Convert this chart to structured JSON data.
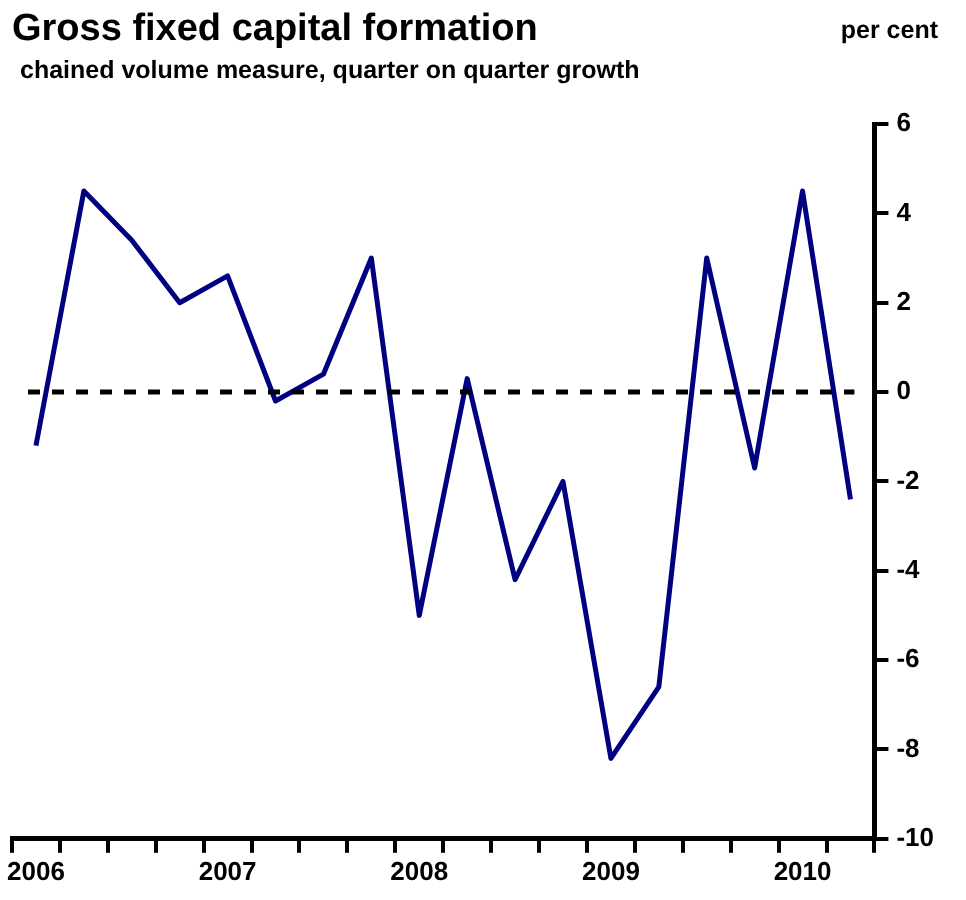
{
  "chart_data": {
    "type": "line",
    "title": "Gross fixed capital formation",
    "subtitle": "chained volume measure, quarter on quarter growth",
    "ylabel": "per cent",
    "categories": [
      "2006",
      null,
      null,
      null,
      "2007",
      null,
      null,
      null,
      "2008",
      null,
      null,
      null,
      "2009",
      null,
      null,
      null,
      "2010",
      null
    ],
    "series": [
      {
        "color": "#000080",
        "values": [
          -1.2,
          4.5,
          3.4,
          2.0,
          2.6,
          -0.2,
          0.4,
          3.0,
          -5.0,
          0.3,
          -4.2,
          -2.0,
          -8.2,
          -6.6,
          3.0,
          -1.7,
          4.5,
          -2.4
        ]
      }
    ],
    "ylim": [
      -10,
      6
    ],
    "yticks": [
      -10,
      -8,
      -6,
      -4,
      -2,
      0,
      2,
      4,
      6
    ],
    "ref_lines": [
      {
        "axis": "y",
        "value": 0,
        "color": "#000000",
        "line_style": "dashed"
      }
    ],
    "grid": false,
    "legend": false,
    "marker": "none",
    "line_style": "solid"
  }
}
